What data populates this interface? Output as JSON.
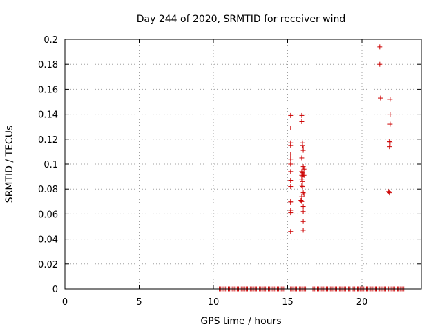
{
  "chart_data": {
    "type": "scatter",
    "title": "Day 244 of 2020, SRMTID for receiver wind",
    "xlabel": "GPS time / hours",
    "ylabel": "SRMTID / TECUs",
    "xlim": [
      0,
      24
    ],
    "ylim": [
      0,
      0.2
    ],
    "xticks": [
      0,
      5,
      10,
      15,
      20
    ],
    "xtick_labels": [
      "0",
      "5",
      "10",
      "15",
      "20"
    ],
    "yticks": [
      0,
      0.02,
      0.04,
      0.06,
      0.08,
      0.1,
      0.12,
      0.14,
      0.16,
      0.18,
      0.2
    ],
    "ytick_labels": [
      "0",
      "0.02",
      "0.04",
      "0.06",
      "0.08",
      "0.1",
      "0.12",
      "0.14",
      "0.16",
      "0.18",
      "0.2"
    ],
    "grid": true,
    "marker": "+",
    "marker_color": "#cc0000",
    "series": [
      {
        "name": "SRMTID",
        "points": [
          [
            15.2,
            0.139
          ],
          [
            15.2,
            0.129
          ],
          [
            15.2,
            0.117
          ],
          [
            15.2,
            0.115
          ],
          [
            15.2,
            0.108
          ],
          [
            15.2,
            0.104
          ],
          [
            15.2,
            0.1
          ],
          [
            15.2,
            0.094
          ],
          [
            15.2,
            0.087
          ],
          [
            15.2,
            0.082
          ],
          [
            15.2,
            0.07
          ],
          [
            15.2,
            0.069
          ],
          [
            15.2,
            0.063
          ],
          [
            15.2,
            0.061
          ],
          [
            15.2,
            0.046
          ],
          [
            15.95,
            0.139
          ],
          [
            15.95,
            0.134
          ],
          [
            16.0,
            0.117
          ],
          [
            16.0,
            0.115
          ],
          [
            16.05,
            0.113
          ],
          [
            16.05,
            0.111
          ],
          [
            15.95,
            0.105
          ],
          [
            16.05,
            0.098
          ],
          [
            16.1,
            0.096
          ],
          [
            15.95,
            0.094
          ],
          [
            16.0,
            0.093
          ],
          [
            16.05,
            0.092
          ],
          [
            15.95,
            0.091
          ],
          [
            16.1,
            0.091
          ],
          [
            16.0,
            0.09
          ],
          [
            15.95,
            0.088
          ],
          [
            16.0,
            0.086
          ],
          [
            15.95,
            0.083
          ],
          [
            16.0,
            0.082
          ],
          [
            16.05,
            0.077
          ],
          [
            16.1,
            0.076
          ],
          [
            15.95,
            0.074
          ],
          [
            15.9,
            0.071
          ],
          [
            15.95,
            0.07
          ],
          [
            16.05,
            0.066
          ],
          [
            16.05,
            0.062
          ],
          [
            16.05,
            0.054
          ],
          [
            16.05,
            0.047
          ],
          [
            21.2,
            0.194
          ],
          [
            21.2,
            0.18
          ],
          [
            21.25,
            0.153
          ],
          [
            21.9,
            0.152
          ],
          [
            21.9,
            0.14
          ],
          [
            21.9,
            0.132
          ],
          [
            21.85,
            0.118
          ],
          [
            21.9,
            0.117
          ],
          [
            21.85,
            0.114
          ],
          [
            21.8,
            0.078
          ],
          [
            21.85,
            0.077
          ]
        ],
        "zero_points_x_range": [
          10.3,
          22.9
        ],
        "zero_points_gaps": [
          [
            14.85,
            15.15
          ],
          [
            16.35,
            16.6
          ],
          [
            19.25,
            19.35
          ]
        ],
        "zero_value": 0
      }
    ]
  }
}
